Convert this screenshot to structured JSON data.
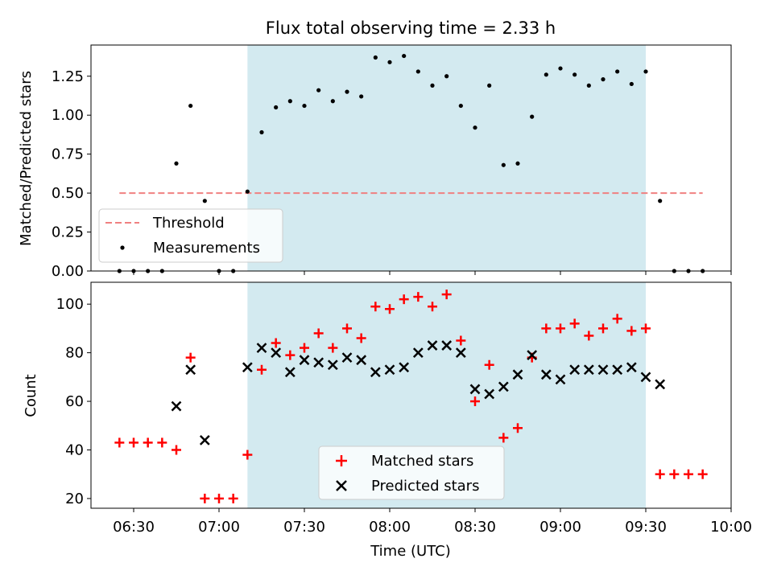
{
  "chart_data": {
    "title": "Flux total observing time = 2.33 h",
    "xlabel": "Time (UTC)",
    "x_unit": "time of day (HH:MM)",
    "xlim": [
      "06:15",
      "10:00"
    ],
    "xticks": [
      "06:30",
      "07:00",
      "07:30",
      "08:00",
      "08:30",
      "09:00",
      "09:30",
      "10:00"
    ],
    "panels": [
      {
        "id": "ratio",
        "type": "scatter",
        "ylabel": "Matched/Predicted stars",
        "ylim": [
          0,
          1.45
        ],
        "yticks": [
          "0.00",
          "0.25",
          "0.50",
          "0.75",
          "1.00",
          "1.25"
        ],
        "shaded_span": [
          "07:10",
          "09:30"
        ],
        "shade_color": "#d3eaf0",
        "legend": {
          "location": "lower left",
          "entries": [
            "Threshold",
            "Measurements"
          ]
        },
        "series": [
          {
            "name": "Threshold",
            "style": "dashed-line",
            "color": "#f08080",
            "x": [
              "06:25",
              "09:50"
            ],
            "y": [
              0.5,
              0.5
            ]
          },
          {
            "name": "Measurements",
            "style": "dot",
            "color": "#000000",
            "x": [
              "06:25",
              "06:30",
              "06:35",
              "06:40",
              "06:45",
              "06:50",
              "06:55",
              "07:00",
              "07:05",
              "07:10",
              "07:15",
              "07:20",
              "07:25",
              "07:30",
              "07:35",
              "07:40",
              "07:45",
              "07:50",
              "07:55",
              "08:00",
              "08:05",
              "08:10",
              "08:15",
              "08:20",
              "08:25",
              "08:30",
              "08:35",
              "08:40",
              "08:45",
              "08:50",
              "08:55",
              "09:00",
              "09:05",
              "09:10",
              "09:15",
              "09:20",
              "09:25",
              "09:30",
              "09:35",
              "09:40",
              "09:45",
              "09:50"
            ],
            "y": [
              0.0,
              0.0,
              0.0,
              0.0,
              0.69,
              1.06,
              0.45,
              0.0,
              0.0,
              0.51,
              0.89,
              1.05,
              1.09,
              1.06,
              1.16,
              1.09,
              1.15,
              1.12,
              1.37,
              1.34,
              1.38,
              1.28,
              1.19,
              1.25,
              1.06,
              0.92,
              1.19,
              0.68,
              0.69,
              0.99,
              1.26,
              1.3,
              1.26,
              1.19,
              1.23,
              1.28,
              1.2,
              1.28,
              0.45,
              0.0,
              0.0,
              0.0
            ]
          }
        ]
      },
      {
        "id": "counts",
        "type": "scatter",
        "ylabel": "Count",
        "ylim": [
          16,
          109
        ],
        "yticks": [
          "20",
          "40",
          "60",
          "80",
          "100"
        ],
        "shaded_span": [
          "07:10",
          "09:30"
        ],
        "shade_color": "#d3eaf0",
        "legend": {
          "location": "lower center",
          "entries": [
            "Matched stars",
            "Predicted stars"
          ]
        },
        "series": [
          {
            "name": "Matched stars",
            "style": "plus",
            "color": "#ff0000",
            "x": [
              "06:25",
              "06:30",
              "06:35",
              "06:40",
              "06:45",
              "06:50",
              "06:55",
              "07:00",
              "07:05",
              "07:10",
              "07:15",
              "07:20",
              "07:25",
              "07:30",
              "07:35",
              "07:40",
              "07:45",
              "07:50",
              "07:55",
              "08:00",
              "08:05",
              "08:10",
              "08:15",
              "08:20",
              "08:25",
              "08:30",
              "08:35",
              "08:40",
              "08:45",
              "08:50",
              "08:55",
              "09:00",
              "09:05",
              "09:10",
              "09:15",
              "09:20",
              "09:25",
              "09:30",
              "09:35",
              "09:40",
              "09:45",
              "09:50"
            ],
            "y": [
              43,
              43,
              43,
              43,
              40,
              78,
              20,
              20,
              20,
              38,
              73,
              84,
              79,
              82,
              88,
              82,
              90,
              86,
              99,
              98,
              102,
              103,
              99,
              104,
              85,
              60,
              75,
              45,
              49,
              78,
              90,
              90,
              92,
              87,
              90,
              94,
              89,
              90,
              30,
              30,
              30,
              30
            ]
          },
          {
            "name": "Predicted stars",
            "style": "x",
            "color": "#000000",
            "x": [
              "06:45",
              "06:50",
              "06:55",
              "07:10",
              "07:15",
              "07:20",
              "07:25",
              "07:30",
              "07:35",
              "07:40",
              "07:45",
              "07:50",
              "07:55",
              "08:00",
              "08:05",
              "08:10",
              "08:15",
              "08:20",
              "08:25",
              "08:30",
              "08:35",
              "08:40",
              "08:45",
              "08:50",
              "08:55",
              "09:00",
              "09:05",
              "09:10",
              "09:15",
              "09:20",
              "09:25",
              "09:30",
              "09:35"
            ],
            "y": [
              58,
              73,
              44,
              74,
              82,
              80,
              72,
              77,
              76,
              75,
              78,
              77,
              72,
              73,
              74,
              80,
              83,
              83,
              80,
              65,
              63,
              66,
              71,
              79,
              71,
              69,
              73,
              73,
              73,
              73,
              74,
              70,
              67
            ]
          }
        ]
      }
    ]
  }
}
